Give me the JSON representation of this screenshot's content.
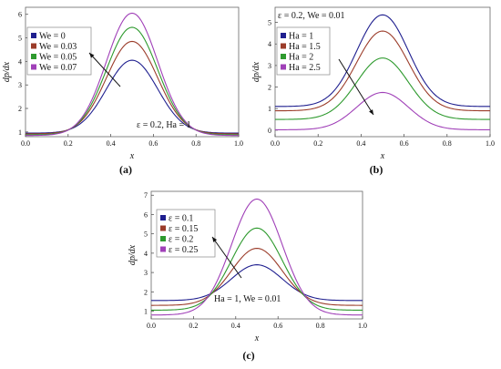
{
  "chart_data": [
    {
      "type": "line",
      "panel_label": "(a)",
      "xlabel": "x",
      "ylabel": "dp/dx",
      "xlim": [
        0,
        1
      ],
      "ylim": [
        0.8,
        6.3
      ],
      "xticks": [
        "0.0",
        "0.2",
        "0.4",
        "0.6",
        "0.8",
        "1.0"
      ],
      "yticks": [
        "1",
        "2",
        "3",
        "4",
        "5",
        "6"
      ],
      "annotation": "ε = 0.2, Ha = 1",
      "legend_position": "top-left",
      "series": [
        {
          "name": "We = 0",
          "color": "#1f1f8f",
          "min": 0.95,
          "peak": 4.05
        },
        {
          "name": "We = 0.03",
          "color": "#9b3c2a",
          "min": 0.92,
          "peak": 4.85
        },
        {
          "name": "We = 0.05",
          "color": "#2e9a2e",
          "min": 0.88,
          "peak": 5.45
        },
        {
          "name": "We = 0.07",
          "color": "#a040b8",
          "min": 0.85,
          "peak": 6.05
        }
      ]
    },
    {
      "type": "line",
      "panel_label": "(b)",
      "xlabel": "x",
      "ylabel": "dp/dx",
      "xlim": [
        0,
        1
      ],
      "ylim": [
        -0.3,
        5.7
      ],
      "xticks": [
        "0.0",
        "0.2",
        "0.4",
        "0.6",
        "0.8",
        "1.0"
      ],
      "yticks": [
        "0",
        "1",
        "2",
        "3",
        "4",
        "5"
      ],
      "annotation": "ε = 0.2, We = 0.01",
      "legend_position": "top-left",
      "series": [
        {
          "name": "Ha = 1",
          "color": "#1f1f8f",
          "min": 1.1,
          "peak": 5.35
        },
        {
          "name": "Ha = 1.5",
          "color": "#9b3c2a",
          "min": 0.9,
          "peak": 4.6
        },
        {
          "name": "Ha = 2",
          "color": "#2e9a2e",
          "min": 0.5,
          "peak": 3.35
        },
        {
          "name": "Ha = 2.5",
          "color": "#a040b8",
          "min": 0.02,
          "peak": 1.75
        }
      ]
    },
    {
      "type": "line",
      "panel_label": "(c)",
      "xlabel": "x",
      "ylabel": "dp/dx",
      "xlim": [
        0,
        1
      ],
      "ylim": [
        0.6,
        7.2
      ],
      "xticks": [
        "0.0",
        "0.2",
        "0.4",
        "0.6",
        "0.8",
        "1.0"
      ],
      "yticks": [
        "1",
        "2",
        "3",
        "4",
        "5",
        "6",
        "7"
      ],
      "annotation": "Ha = 1, We = 0.01",
      "legend_position": "top-left",
      "series": [
        {
          "name": "ε = 0.1",
          "color": "#1f1f8f",
          "min": 1.55,
          "peak": 3.4
        },
        {
          "name": "ε = 0.15",
          "color": "#9b3c2a",
          "min": 1.3,
          "peak": 4.25
        },
        {
          "name": "ε = 0.2",
          "color": "#2e9a2e",
          "min": 1.05,
          "peak": 5.3
        },
        {
          "name": "ε = 0.25",
          "color": "#a040b8",
          "min": 0.8,
          "peak": 6.8
        }
      ]
    }
  ]
}
